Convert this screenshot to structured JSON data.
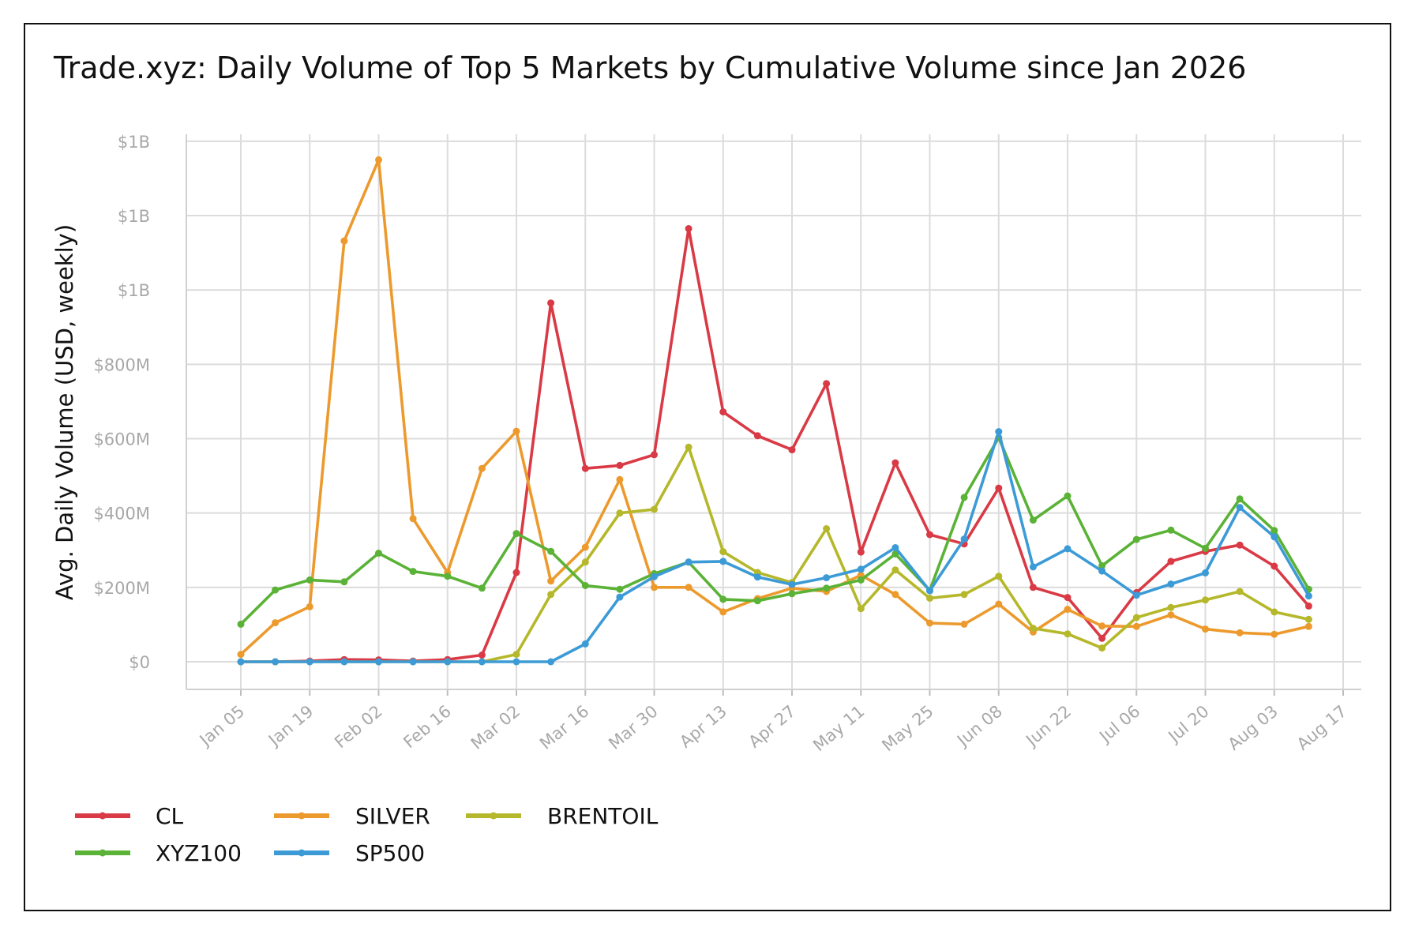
{
  "chart_data": {
    "type": "line",
    "title": "Trade.xyz: Daily Volume of Top 5 Markets by Cumulative Volume since Jan 2026",
    "xlabel": "",
    "ylabel": "Avg. Daily Volume (USD, weekly)",
    "ylim": [
      -70,
      1450
    ],
    "xlim": [
      "2025-12-29",
      "2026-08-17"
    ],
    "x_tick_labels": [
      "Jan 05",
      "Jan 19",
      "Feb 02",
      "Feb 16",
      "Mar 02",
      "Mar 16",
      "Mar 30",
      "Apr 13",
      "Apr 27",
      "May 11",
      "May 25",
      "Jun 08",
      "Jun 22",
      "Jul 06",
      "Jul 20",
      "Aug 03",
      "Aug 17"
    ],
    "x_tick_dates": [
      "2026-01-05",
      "2026-01-19",
      "2026-02-02",
      "2026-02-16",
      "2026-03-02",
      "2026-03-16",
      "2026-03-30",
      "2026-04-13",
      "2026-04-27",
      "2026-05-11",
      "2026-05-25",
      "2026-06-08",
      "2026-06-22",
      "2026-07-06",
      "2026-07-20",
      "2026-08-03",
      "2026-08-17"
    ],
    "y_ticks": [
      {
        "value": 0,
        "label": "$0"
      },
      {
        "value": 200,
        "label": "$200M"
      },
      {
        "value": 400,
        "label": "$400M"
      },
      {
        "value": 600,
        "label": "$600M"
      },
      {
        "value": 800,
        "label": "$800M"
      },
      {
        "value": 1000,
        "label": "$1B"
      },
      {
        "value": 1200,
        "label": "$1B"
      },
      {
        "value": 1400,
        "label": "$1B"
      }
    ],
    "y_unit": "USD millions",
    "grid": true,
    "legend_position": "bottom-left",
    "x": [
      "2026-01-05",
      "2026-01-12",
      "2026-01-19",
      "2026-01-26",
      "2026-02-02",
      "2026-02-09",
      "2026-02-16",
      "2026-02-23",
      "2026-03-02",
      "2026-03-09",
      "2026-03-16",
      "2026-03-23",
      "2026-03-30",
      "2026-04-06",
      "2026-04-13",
      "2026-04-20",
      "2026-04-27",
      "2026-05-04",
      "2026-05-11",
      "2026-05-18",
      "2026-05-25",
      "2026-06-01",
      "2026-06-08",
      "2026-06-15",
      "2026-06-22",
      "2026-06-29",
      "2026-07-06",
      "2026-07-13",
      "2026-07-20",
      "2026-07-27",
      "2026-08-03",
      "2026-08-10"
    ],
    "series": [
      {
        "name": "CL",
        "color": "#d93a45",
        "values": [
          0,
          0,
          2,
          6,
          5,
          2,
          6,
          18,
          240,
          965,
          520,
          528,
          557,
          1165,
          672,
          608,
          570,
          748,
          295,
          535,
          342,
          317,
          467,
          200,
          173,
          63,
          186,
          270,
          297,
          314,
          257,
          150
        ]
      },
      {
        "name": "SILVER",
        "color": "#ec9a2d",
        "values": [
          20,
          105,
          148,
          1132,
          1350,
          385,
          240,
          520,
          620,
          217,
          308,
          490,
          200,
          200,
          134,
          170,
          198,
          189,
          233,
          181,
          104,
          101,
          155,
          80,
          141,
          96,
          95,
          126,
          88,
          78,
          74,
          95
        ]
      },
      {
        "name": "BRENTOIL",
        "color": "#b5b82a",
        "values": [
          0,
          0,
          0,
          0,
          0,
          0,
          0,
          0,
          20,
          181,
          268,
          400,
          410,
          577,
          296,
          240,
          213,
          358,
          143,
          247,
          171,
          181,
          230,
          90,
          75,
          37,
          119,
          146,
          166,
          189,
          134,
          114
        ]
      },
      {
        "name": "XYZ100",
        "color": "#5ab236",
        "values": [
          101,
          193,
          220,
          215,
          292,
          243,
          230,
          198,
          345,
          297,
          205,
          195,
          237,
          268,
          168,
          164,
          183,
          198,
          220,
          290,
          192,
          442,
          603,
          381,
          446,
          258,
          329,
          354,
          305,
          438,
          353,
          195
        ]
      },
      {
        "name": "SP500",
        "color": "#3c9bd6",
        "values": [
          0,
          0,
          0,
          0,
          0,
          0,
          0,
          0,
          0,
          0,
          48,
          174,
          229,
          268,
          270,
          228,
          208,
          226,
          249,
          307,
          191,
          330,
          619,
          255,
          304,
          244,
          179,
          209,
          239,
          415,
          336,
          177
        ]
      }
    ]
  }
}
